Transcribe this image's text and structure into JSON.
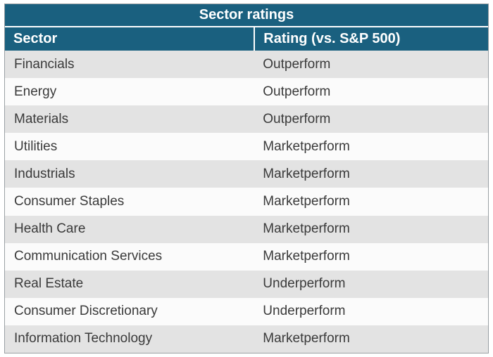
{
  "chart_data": {
    "type": "table",
    "title": "Sector ratings",
    "columns": [
      "Sector",
      "Rating  (vs. S&P 500)"
    ],
    "rows": [
      [
        "Financials",
        "Outperform"
      ],
      [
        "Energy",
        "Outperform"
      ],
      [
        "Materials",
        "Outperform"
      ],
      [
        "Utilities",
        "Marketperform"
      ],
      [
        "Industrials",
        "Marketperform"
      ],
      [
        "Consumer Staples",
        "Marketperform"
      ],
      [
        "Health Care",
        "Marketperform"
      ],
      [
        "Communication Services",
        "Marketperform"
      ],
      [
        "Real Estate",
        "Underperform"
      ],
      [
        "Consumer Discretionary",
        "Underperform"
      ],
      [
        "Information Technology",
        "Marketperform"
      ]
    ]
  },
  "colors": {
    "header_bg": "#1a607f",
    "header_text": "#ffffff",
    "row_odd_bg": "#e3e3e3",
    "row_even_bg": "#fbfbfb",
    "body_text": "#3a3a3a"
  }
}
